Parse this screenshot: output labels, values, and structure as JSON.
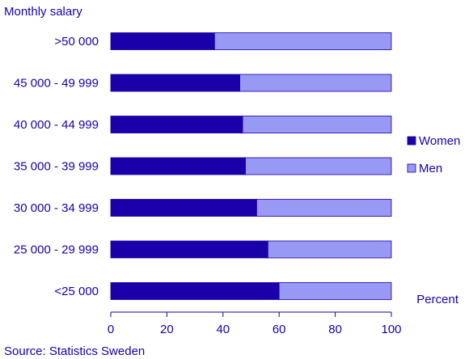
{
  "chart_data": {
    "type": "bar",
    "orientation": "horizontal",
    "stacked": true,
    "title": "Monthly salary",
    "unit_label": "Percent",
    "source": "Source: Statistics Sweden",
    "categories": [
      ">50 000",
      "45 000 - 49 999",
      "40 000 - 44 999",
      "35 000 - 39 999",
      "30 000 - 34 999",
      "25 000 - 29 999",
      "<25 000"
    ],
    "series": [
      {
        "name": "Women",
        "values": [
          37,
          46,
          47,
          48,
          52,
          56,
          60
        ],
        "color": "#1a00a8"
      },
      {
        "name": "Men",
        "values": [
          63,
          54,
          53,
          52,
          48,
          44,
          40
        ],
        "color": "#9898f5"
      }
    ],
    "xlim": [
      0,
      100
    ],
    "xticks": [
      0,
      20,
      40,
      60,
      80,
      100
    ],
    "grid": false,
    "legend_position": "right"
  }
}
